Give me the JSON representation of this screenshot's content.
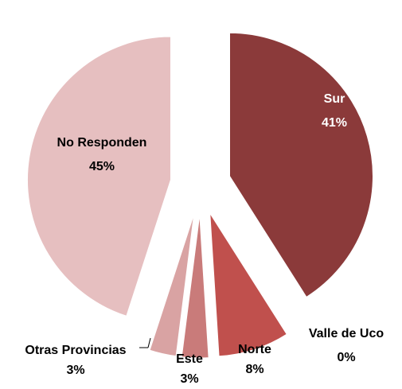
{
  "chart_data": {
    "type": "pie",
    "categories": [
      "Sur",
      "Valle de Uco",
      "Norte",
      "Este",
      "Otras Provincias",
      "No Responden"
    ],
    "values": [
      41,
      0,
      8,
      3,
      3,
      45
    ],
    "value_labels": [
      "41%",
      "0%",
      "8%",
      "3%",
      "3%",
      "45%"
    ],
    "colors": [
      "#8b3a3a",
      "#a04444",
      "#c0504d",
      "#c97b7a",
      "#d9a3a3",
      "#e6bfc0"
    ]
  }
}
